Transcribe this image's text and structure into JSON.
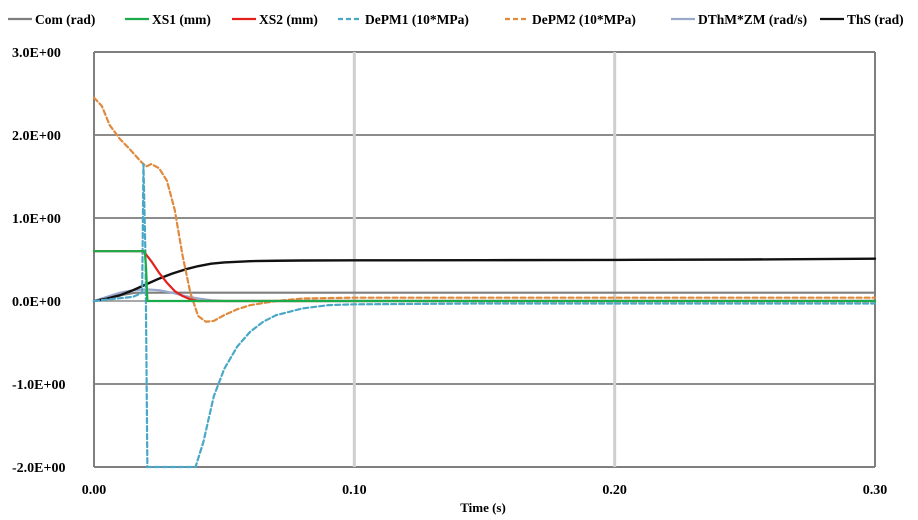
{
  "chart_data": {
    "type": "line",
    "title": "",
    "xlabel": "Time (s)",
    "ylabel": "",
    "xlim": [
      0,
      0.3
    ],
    "ylim": [
      -2.0,
      3.0
    ],
    "x_ticks": [
      0.0,
      0.1,
      0.2,
      0.3
    ],
    "x_tick_labels": [
      "0.00",
      "0.10",
      "0.20",
      "0.30"
    ],
    "y_ticks": [
      -2.0,
      -1.0,
      0.0,
      1.0,
      2.0,
      3.0
    ],
    "y_tick_labels": [
      "-2.0E+00",
      "-1.0E+00",
      "0.0E+00",
      "1.0E+00",
      "2.0E+00",
      "3.0E+00"
    ],
    "grid": true,
    "legend_position": "top",
    "series": [
      {
        "name": "Com (rad)",
        "color": "#7f7f7f",
        "dash": "solid",
        "points": [
          [
            0,
            0
          ],
          [
            0.004,
            0.02
          ],
          [
            0.008,
            0.05
          ],
          [
            0.012,
            0.08
          ],
          [
            0.016,
            0.1
          ],
          [
            0.02,
            0.1
          ],
          [
            0.024,
            0.1
          ],
          [
            0.028,
            0.1
          ],
          [
            0.032,
            0.1
          ],
          [
            0.036,
            0.1
          ],
          [
            0.04,
            0.1
          ],
          [
            0.05,
            0.1
          ],
          [
            0.06,
            0.1
          ],
          [
            0.08,
            0.1
          ],
          [
            0.1,
            0.1
          ],
          [
            0.15,
            0.1
          ],
          [
            0.2,
            0.1
          ],
          [
            0.25,
            0.1
          ],
          [
            0.3,
            0.1
          ]
        ]
      },
      {
        "name": "XS1 (mm)",
        "color": "#1aab4a",
        "dash": "solid",
        "points": [
          [
            0,
            0.6
          ],
          [
            0.0195,
            0.6
          ],
          [
            0.02,
            0.4
          ],
          [
            0.0205,
            0.0
          ],
          [
            0.03,
            0.0
          ],
          [
            0.05,
            0.0
          ],
          [
            0.1,
            0.0
          ],
          [
            0.2,
            0.0
          ],
          [
            0.3,
            0.0
          ]
        ]
      },
      {
        "name": "XS2 (mm)",
        "color": "#e5201b",
        "dash": "solid",
        "points": [
          [
            0,
            0.6
          ],
          [
            0.019,
            0.6
          ],
          [
            0.022,
            0.48
          ],
          [
            0.025,
            0.34
          ],
          [
            0.028,
            0.22
          ],
          [
            0.031,
            0.12
          ],
          [
            0.034,
            0.06
          ],
          [
            0.037,
            0.02
          ],
          [
            0.04,
            0.0
          ],
          [
            0.06,
            0.0
          ],
          [
            0.1,
            0.0
          ],
          [
            0.2,
            0.0
          ],
          [
            0.3,
            0.0
          ]
        ]
      },
      {
        "name": "DePM1 (10*MPa)",
        "color": "#4aa8c6",
        "dash": "dashed",
        "points": [
          [
            0,
            0.0
          ],
          [
            0.015,
            0.05
          ],
          [
            0.0185,
            0.1
          ],
          [
            0.019,
            1.65
          ],
          [
            0.0198,
            0.5
          ],
          [
            0.0205,
            -2.0
          ],
          [
            0.039,
            -2.0
          ],
          [
            0.042,
            -1.7
          ],
          [
            0.046,
            -1.15
          ],
          [
            0.05,
            -0.82
          ],
          [
            0.055,
            -0.55
          ],
          [
            0.06,
            -0.37
          ],
          [
            0.065,
            -0.25
          ],
          [
            0.07,
            -0.17
          ],
          [
            0.08,
            -0.09
          ],
          [
            0.09,
            -0.05
          ],
          [
            0.1,
            -0.04
          ],
          [
            0.15,
            -0.03
          ],
          [
            0.2,
            -0.03
          ],
          [
            0.25,
            -0.03
          ],
          [
            0.3,
            -0.03
          ]
        ]
      },
      {
        "name": "DePM2 (10*MPa)",
        "color": "#e08a3e",
        "dash": "dashed",
        "points": [
          [
            0,
            2.45
          ],
          [
            0.003,
            2.35
          ],
          [
            0.006,
            2.12
          ],
          [
            0.01,
            1.95
          ],
          [
            0.014,
            1.82
          ],
          [
            0.018,
            1.68
          ],
          [
            0.02,
            1.62
          ],
          [
            0.022,
            1.65
          ],
          [
            0.025,
            1.6
          ],
          [
            0.028,
            1.45
          ],
          [
            0.031,
            1.1
          ],
          [
            0.034,
            0.55
          ],
          [
            0.037,
            0.1
          ],
          [
            0.04,
            -0.18
          ],
          [
            0.043,
            -0.25
          ],
          [
            0.046,
            -0.24
          ],
          [
            0.05,
            -0.17
          ],
          [
            0.055,
            -0.1
          ],
          [
            0.06,
            -0.05
          ],
          [
            0.07,
            0.0
          ],
          [
            0.08,
            0.03
          ],
          [
            0.1,
            0.04
          ],
          [
            0.15,
            0.04
          ],
          [
            0.2,
            0.04
          ],
          [
            0.3,
            0.04
          ]
        ]
      },
      {
        "name": "DThM*ZM (rad/s)",
        "color": "#9aa8cc",
        "dash": "solid",
        "points": [
          [
            0,
            0.0
          ],
          [
            0.005,
            0.05
          ],
          [
            0.01,
            0.1
          ],
          [
            0.015,
            0.13
          ],
          [
            0.02,
            0.14
          ],
          [
            0.025,
            0.13
          ],
          [
            0.03,
            0.1
          ],
          [
            0.035,
            0.06
          ],
          [
            0.04,
            0.03
          ],
          [
            0.045,
            0.01
          ],
          [
            0.05,
            0.0
          ],
          [
            0.1,
            0.0
          ],
          [
            0.2,
            0.0
          ],
          [
            0.3,
            0.0
          ]
        ]
      },
      {
        "name": "ThS (rad)",
        "color": "#111111",
        "dash": "solid",
        "points": [
          [
            0,
            0.0
          ],
          [
            0.005,
            0.03
          ],
          [
            0.01,
            0.07
          ],
          [
            0.015,
            0.13
          ],
          [
            0.02,
            0.2
          ],
          [
            0.025,
            0.27
          ],
          [
            0.03,
            0.33
          ],
          [
            0.035,
            0.38
          ],
          [
            0.04,
            0.42
          ],
          [
            0.045,
            0.45
          ],
          [
            0.05,
            0.465
          ],
          [
            0.06,
            0.48
          ],
          [
            0.07,
            0.485
          ],
          [
            0.08,
            0.488
          ],
          [
            0.1,
            0.49
          ],
          [
            0.15,
            0.492
          ],
          [
            0.2,
            0.495
          ],
          [
            0.25,
            0.5
          ],
          [
            0.3,
            0.51
          ]
        ]
      }
    ]
  }
}
